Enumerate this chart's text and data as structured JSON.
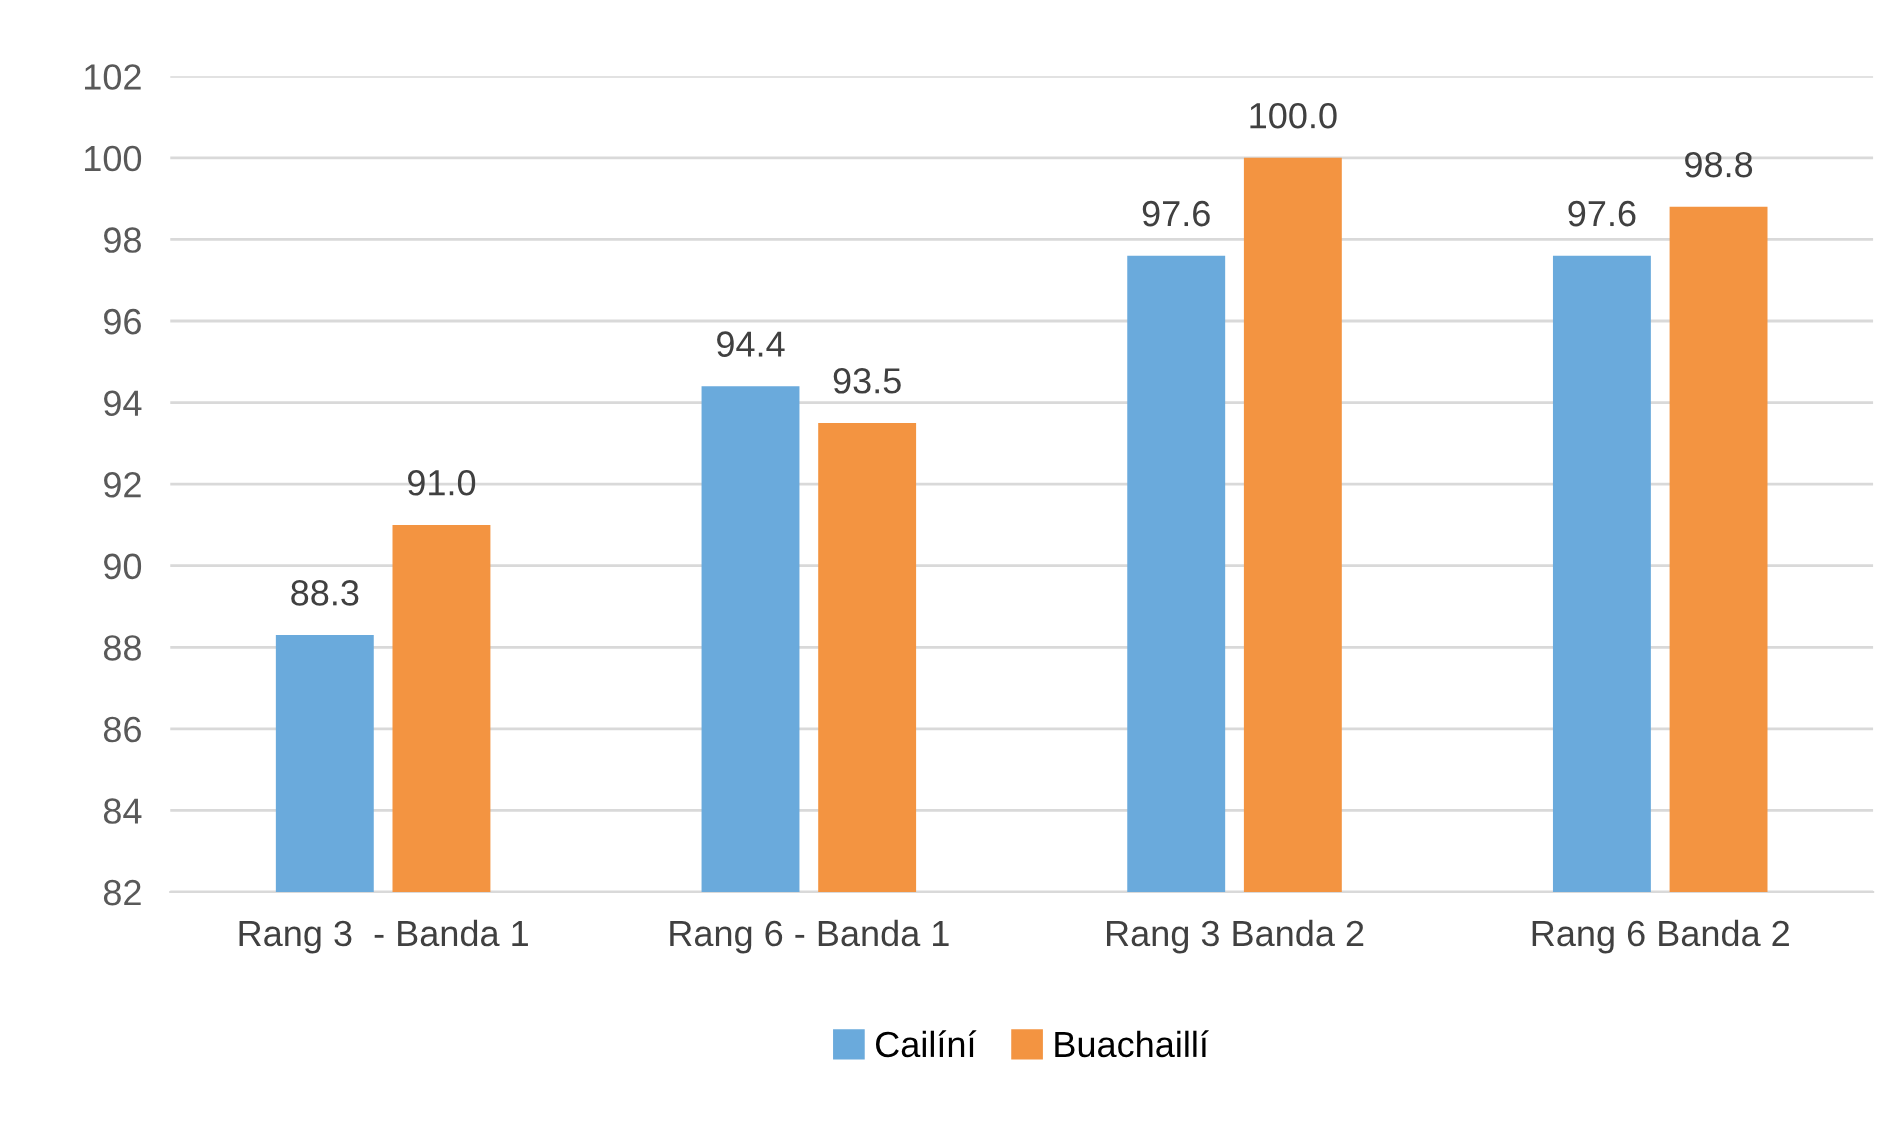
{
  "chart_data": {
    "type": "bar",
    "categories": [
      "Rang 3  - Banda 1",
      "Rang 6 - Banda 1",
      "Rang 3 Banda 2",
      "Rang 6 Banda 2"
    ],
    "series": [
      {
        "name": "Cailíní",
        "color": "#6aaadc",
        "values": [
          88.3,
          94.4,
          97.6,
          97.6
        ],
        "value_labels": [
          "88.3",
          "94.4",
          "97.6",
          "97.6"
        ]
      },
      {
        "name": "Buachaillí",
        "color": "#f39441",
        "values": [
          91.0,
          93.5,
          100.0,
          98.8
        ],
        "value_labels": [
          "91.0",
          "93.5",
          "100.0",
          "98.8"
        ]
      }
    ],
    "ylim": [
      82,
      102
    ],
    "yticks": [
      82,
      84,
      86,
      88,
      90,
      92,
      94,
      96,
      98,
      100,
      102
    ],
    "grid": "y",
    "legend": "bottom"
  }
}
